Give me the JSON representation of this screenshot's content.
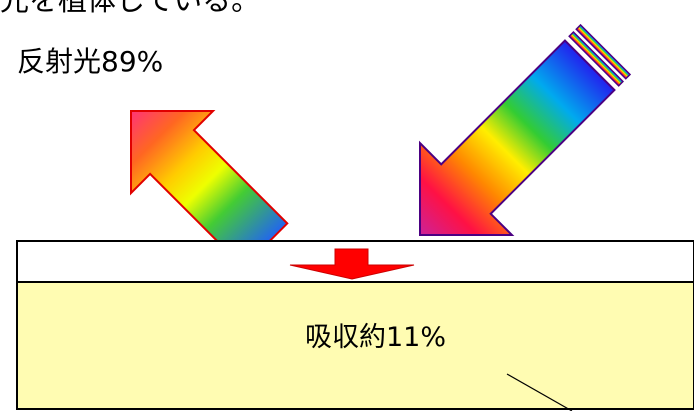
{
  "heading_partial": "光を植体している。",
  "reflected": {
    "label": "反射光89%"
  },
  "absorbed": {
    "label": "吸収約11%"
  },
  "colors": {
    "surface_layer": "#ffffff",
    "substrate": "#fffcb2",
    "absorb_arrow": "#ff0000",
    "reflect_outline": "#e00000",
    "incident_outline": "#4b0082"
  }
}
